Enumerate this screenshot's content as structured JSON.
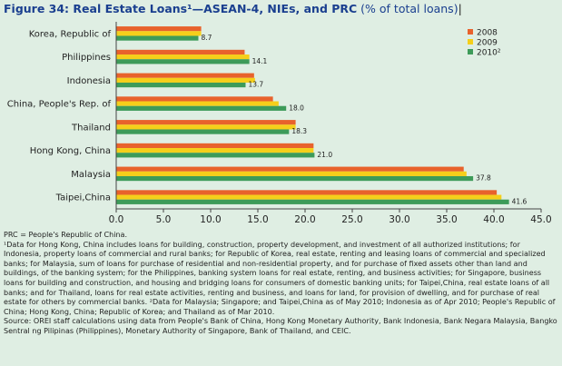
{
  "title": {
    "main": "Figure 34: Real Estate Loans¹—ASEAN-4, NIEs, and PRC",
    "unit": " (% of total loans)"
  },
  "chart_data": {
    "type": "bar",
    "orientation": "horizontal",
    "categories": [
      "Korea, Republic of",
      "Philippines",
      "Indonesia",
      "China, People's Rep. of",
      "Thailand",
      "Hong Kong, China",
      "Malaysia",
      "Taipei,China"
    ],
    "series": [
      {
        "name": "2008",
        "color": "#e8622c",
        "values": [
          9.0,
          13.6,
          14.6,
          16.6,
          19.0,
          20.9,
          36.8,
          40.3
        ]
      },
      {
        "name": "2009",
        "color": "#f5cf1a",
        "values": [
          9.0,
          14.1,
          14.7,
          17.2,
          19.0,
          20.9,
          37.1,
          40.8
        ]
      },
      {
        "name": "2010²",
        "color": "#3d9b59",
        "values": [
          8.7,
          14.1,
          13.7,
          18.0,
          18.3,
          21.0,
          37.8,
          41.6
        ]
      }
    ],
    "data_labels": [
      "8.7",
      "14.1",
      "13.7",
      "18.0",
      "18.3",
      "21.0",
      "37.8",
      "41.6"
    ],
    "xlim": [
      0,
      45
    ],
    "xticks": [
      "0.0",
      "5.0",
      "10.0",
      "15.0",
      "20.0",
      "25.0",
      "30.0",
      "35.0",
      "40.0",
      "45.0"
    ],
    "legend_position": "top-right",
    "grid": false
  },
  "notes": [
    "PRC = People's Republic of China.",
    "¹Data for Hong Kong, China includes loans for building, construction, property development, and investment of all authorized institutions; for Indonesia, property loans of commercial and rural banks; for Republic of Korea, real estate, renting and leasing loans of commercial and specialized banks; for Malaysia, sum of loans for purchase of residential and non-residential property, and for purchase of fixed assets other than land and buildings, of the banking system; for the Philippines, banking system loans for real estate, renting, and business activities; for Singapore, business loans for building and construction, and housing and bridging loans for consumers of domestic banking units; for Taipei,China, real estate loans of all banks; and for Thailand, loans for real estate activities, renting and business, and loans for land, for provision of dwelling, and for purchase of real estate for others by commercial banks. ²Data for Malaysia; Singapore; and Taipei,China as of May 2010; Indonesia as of Apr 2010; People's Republic of China; Hong Kong, China; Republic of Korea; and Thailand as of Mar 2010.",
    "Source: OREI staff calculations using data from People's Bank of China, Hong Kong Monetary Authority, Bank Indonesia, Bank Negara Malaysia, Bangko Sentral ng Pilipinas (Philippines), Monetary Authority of Singapore, Bank of Thailand, and CEIC."
  ]
}
